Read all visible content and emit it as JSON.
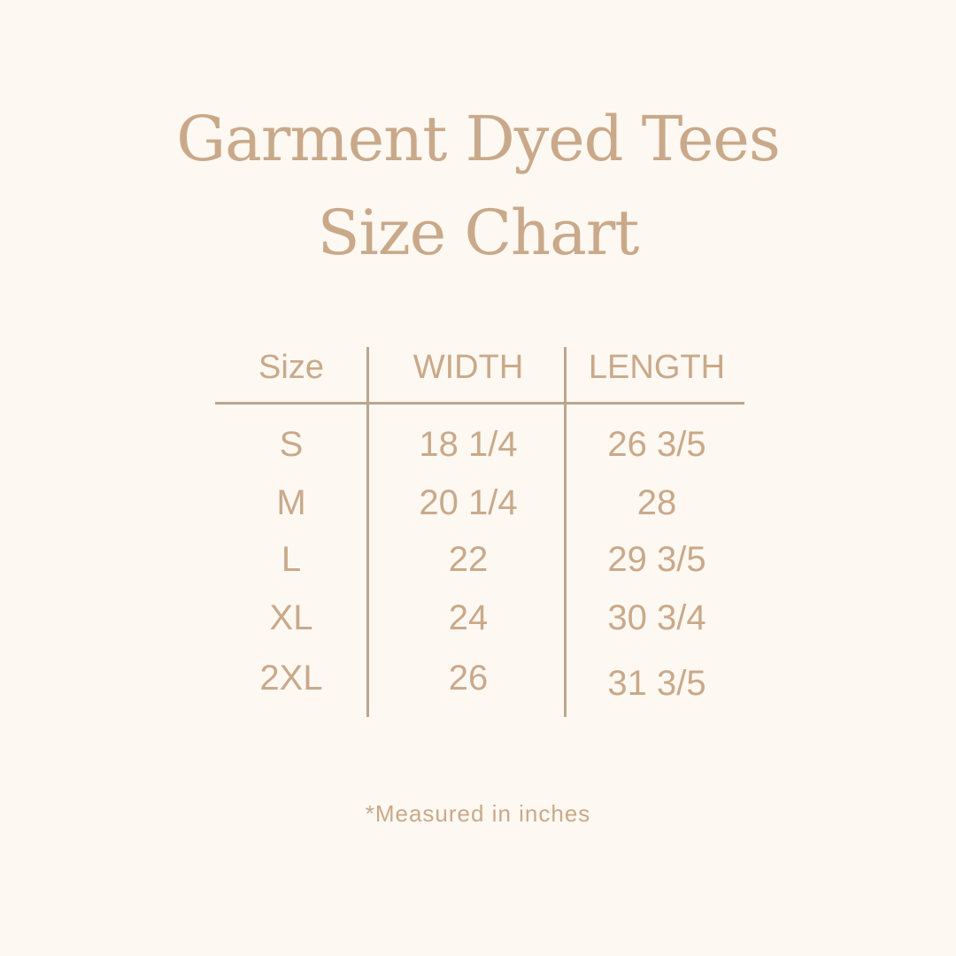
{
  "title": {
    "line1": "Garment Dyed Tees",
    "line2": "Size Chart"
  },
  "table": {
    "headers": [
      "Size",
      "WIDTH",
      "LENGTH"
    ],
    "rows": [
      [
        "S",
        "18 1/4",
        "26 3/5"
      ],
      [
        "M",
        "20 1/4",
        "28"
      ],
      [
        "L",
        "22",
        "29 3/5"
      ],
      [
        "XL",
        "24",
        "30 3/4"
      ],
      [
        "2XL",
        "26",
        "31 3/5"
      ]
    ]
  },
  "note": "*Measured in inches",
  "colors": {
    "background": "#fdf8f1",
    "text": "#c9a98a",
    "rule": "#bba68f"
  }
}
